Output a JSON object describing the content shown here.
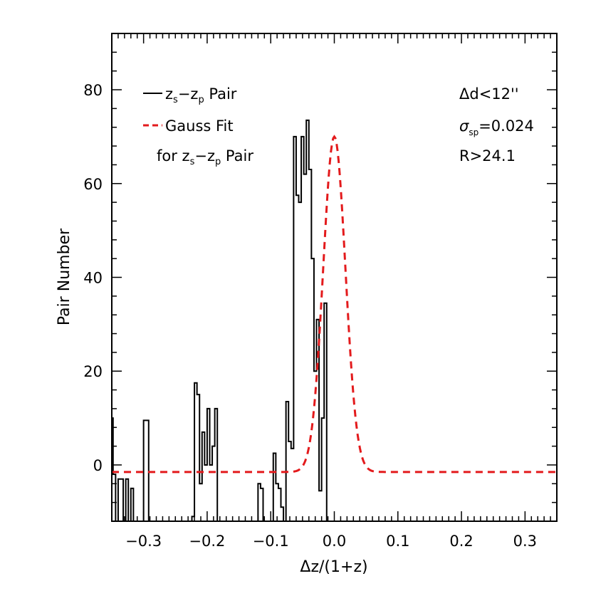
{
  "chart_data": {
    "type": "histogram",
    "xlabel": "Δz/(1+z)",
    "ylabel": "Pair Number",
    "xlim": [
      -0.35,
      0.35
    ],
    "ylim": [
      -12,
      92
    ],
    "grid": false,
    "legend_placement": "top-left",
    "x_ticks": [
      -0.3,
      -0.2,
      -0.1,
      0.0,
      0.1,
      0.2,
      0.3
    ],
    "x_tick_labels": [
      "−0.3",
      "−0.2",
      "−0.1",
      "0.0",
      "0.1",
      "0.2",
      "0.3"
    ],
    "y_ticks": [
      0,
      20,
      40,
      60,
      80
    ],
    "y_tick_labels": [
      "0",
      "20",
      "40",
      "60",
      "80"
    ],
    "histogram": {
      "name_main": "z",
      "name_sub1": "s",
      "name_mid": "−z",
      "name_sub2": "p",
      "name_tail": " Pair",
      "color": "#000000",
      "step_x": [
        -0.35,
        -0.348,
        -0.344,
        -0.34,
        -0.332,
        -0.328,
        -0.324,
        -0.32,
        -0.316,
        -0.312,
        -0.308,
        -0.304,
        -0.3,
        -0.292,
        -0.288,
        -0.284,
        -0.28,
        -0.276,
        -0.272,
        -0.268,
        -0.264,
        -0.26,
        -0.256,
        -0.252,
        -0.248,
        -0.244,
        -0.24,
        -0.236,
        -0.232,
        -0.228,
        -0.224,
        -0.22,
        -0.216,
        -0.212,
        -0.208,
        -0.204,
        -0.2,
        -0.196,
        -0.192,
        -0.188,
        -0.184,
        -0.18,
        -0.176,
        -0.172,
        -0.168,
        -0.164,
        -0.16,
        -0.156,
        -0.152,
        -0.148,
        -0.144,
        -0.14,
        -0.136,
        -0.132,
        -0.128,
        -0.124,
        -0.12,
        -0.116,
        -0.112,
        -0.108,
        -0.104,
        -0.1,
        -0.096,
        -0.092,
        -0.088,
        -0.084,
        -0.08,
        -0.076,
        -0.072,
        -0.068,
        -0.064,
        -0.06,
        -0.056,
        -0.052,
        -0.048,
        -0.044,
        -0.04,
        -0.036,
        -0.032,
        -0.028,
        -0.024,
        -0.02,
        -0.016,
        -0.012,
        -0.008,
        -0.004,
        0.0,
        0.004,
        0.008,
        0.012,
        0.016,
        0.02,
        0.024,
        0.028,
        0.032,
        0.036,
        0.04,
        0.044,
        0.048,
        0.052,
        0.056,
        0.06,
        0.064,
        0.068,
        0.072,
        0.076,
        0.08,
        0.084,
        0.088,
        0.092,
        0.096,
        0.1,
        0.104,
        0.108,
        0.112,
        0.116,
        0.12,
        0.124,
        0.128,
        0.132,
        0.136,
        0.14,
        0.144,
        0.148,
        0.152,
        0.156,
        0.16,
        0.164,
        0.168,
        0.172,
        0.176,
        0.18,
        0.184,
        0.188,
        0.192,
        0.196,
        0.2,
        0.204,
        0.208,
        0.212,
        0.216,
        0.22,
        0.224,
        0.228,
        0.232,
        0.236,
        0.24,
        0.244,
        0.248,
        0.252,
        0.256,
        0.26,
        0.264,
        0.268,
        0.272,
        0.276,
        0.28,
        0.284,
        0.288,
        0.292,
        0.296,
        0.3,
        0.304,
        0.308,
        0.312,
        0.316,
        0.32,
        0.324,
        0.328,
        0.332,
        0.336,
        0.34,
        0.344,
        0.348,
        0.35
      ],
      "step_y": [
        10,
        -2,
        -12,
        -3,
        -12,
        -3,
        -12,
        -5,
        -12,
        -12,
        -12,
        -12,
        9.5,
        -12,
        -12,
        -12,
        -12,
        -12,
        -12,
        -12,
        -12,
        -12,
        -12,
        -12,
        -12,
        -12,
        -12,
        -12,
        -12,
        -12,
        -11,
        17.5,
        15,
        -4,
        7,
        0,
        12,
        0,
        4,
        12,
        -12,
        -12,
        -12,
        -12,
        -12,
        -12,
        -12,
        -12,
        -12,
        -12,
        -12,
        -12,
        -12,
        -12,
        -12,
        -12,
        -4,
        -5,
        -12,
        -12,
        -12,
        -12,
        2.5,
        -4,
        -5,
        -9,
        -12,
        13.5,
        5,
        3.5,
        70,
        57.5,
        56,
        70,
        62,
        73.5,
        63,
        44,
        20,
        31,
        -5.5,
        10,
        34.5,
        -12,
        -12,
        -12,
        -12,
        -12,
        -12,
        -12,
        -12,
        -12,
        -12,
        -12,
        -12,
        -12,
        -12,
        -12,
        -12,
        -12,
        -12,
        -12,
        -12,
        -12,
        -12,
        -12,
        -12,
        -12,
        -12,
        -12,
        -12,
        -12,
        -12,
        -12,
        -12,
        -12,
        -12,
        -12,
        -12,
        -12,
        -12,
        -12,
        -12,
        -12,
        -12,
        -12,
        -12,
        -12,
        -12,
        -12,
        -12,
        -12,
        -12,
        -12,
        -12,
        -12,
        -12,
        -12,
        -12,
        -12,
        -12,
        -12,
        -12,
        -12,
        -12,
        -12,
        -12,
        -12,
        -12,
        -12,
        -12,
        -12,
        -12,
        -12,
        -12,
        -12,
        -12,
        -12,
        -12,
        -12,
        -12,
        -12,
        -12,
        -12,
        -12,
        -12,
        -12
      ]
    },
    "gauss_fit": {
      "name_line1": "Gauss Fit",
      "name_line2_main": "for z",
      "name_line2_sub1": "s",
      "name_line2_mid": "−z",
      "name_line2_sub2": "p",
      "name_line2_tail": " Pair",
      "color": "#e31a1c",
      "dash": "dashed",
      "baseline": -1.5,
      "amplitude": 71.5,
      "center": 0.0,
      "sigma": 0.0175
    },
    "annotations": [
      {
        "id": "annot-delta-d",
        "text": "Δd<12''"
      },
      {
        "id": "annot-sigma",
        "main": "σ",
        "sub": "sp",
        "tail": "=0.024"
      },
      {
        "id": "annot-r",
        "text": "R>24.1"
      }
    ]
  }
}
